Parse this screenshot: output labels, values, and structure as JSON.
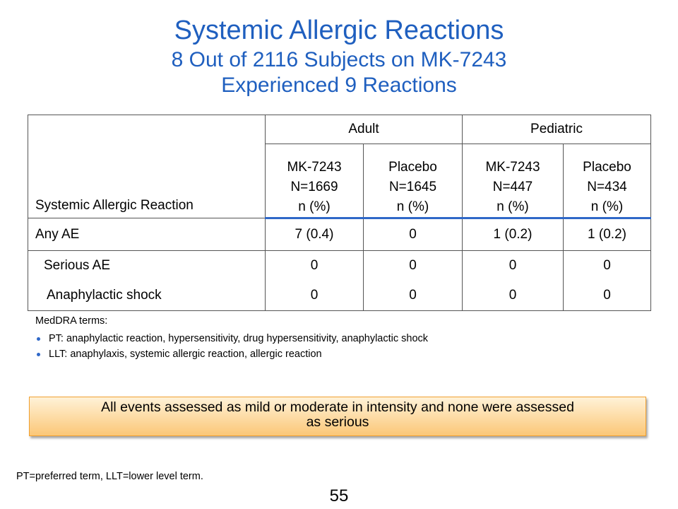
{
  "title": {
    "line1": "Systemic Allergic Reactions",
    "line2": "8 Out of 2116 Subjects on MK-7243",
    "line3": "Experienced  9 Reactions"
  },
  "table": {
    "row_header": "Systemic Allergic Reaction",
    "groups": [
      "Adult",
      "Pediatric"
    ],
    "columns": [
      {
        "l1": "MK-7243",
        "l2": "N=1669",
        "l3": "n (%)"
      },
      {
        "l1": "Placebo",
        "l2": "N=1645",
        "l3": "n (%)"
      },
      {
        "l1": "MK-7243",
        "l2": "N=447",
        "l3": "n (%)"
      },
      {
        "l1": "Placebo",
        "l2": "N=434",
        "l3": "n (%)"
      }
    ],
    "rows": [
      {
        "label": "Any AE",
        "values": [
          "7 (0.4)",
          "0",
          "1 (0.2)",
          "1 (0.2)"
        ]
      },
      {
        "label": "Serious AE",
        "values": [
          "0",
          "0",
          "0",
          "0"
        ]
      },
      {
        "label": "Anaphylactic shock",
        "values": [
          "0",
          "0",
          "0",
          "0"
        ]
      }
    ]
  },
  "meddra": {
    "heading": "MedDRA terms:",
    "items": [
      "PT:  anaphylactic reaction, hypersensitivity, drug hypersensitivity, anaphylactic shock",
      "LLT:  anaphylaxis,  systemic allergic reaction, allergic reaction"
    ]
  },
  "callout": {
    "line1": "All events assessed as mild or moderate in intensity and none were assessed",
    "line2": "as serious"
  },
  "footnote": "PT=preferred term, LLT=lower level term.",
  "page_number": "55",
  "colors": {
    "title": "#1f5fbf",
    "rule": "#2f68c8",
    "callout_border": "#f0a030"
  }
}
